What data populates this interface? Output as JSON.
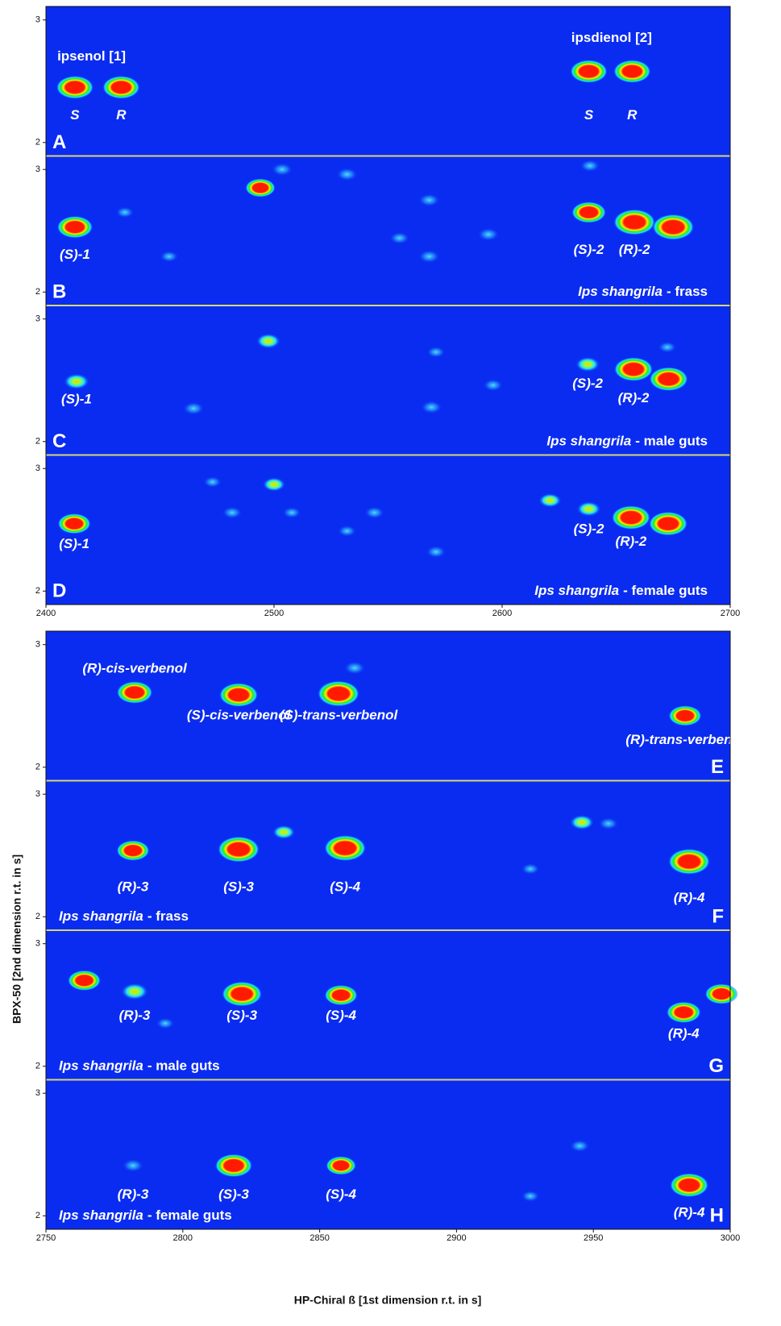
{
  "figure": {
    "x_label": "HP-Chiral ß [1st dimension r.t. in s]",
    "y_label": "BPX-50 [2nd dimension r.t. in s]"
  },
  "chart_data": [
    {
      "type": "heatmap",
      "xlim": [
        2400,
        2700
      ],
      "xticks": [
        2400,
        2500,
        2600,
        2700
      ],
      "ylim": [
        1.89,
        3.11
      ],
      "yticks": [
        2,
        3
      ],
      "letter_corner": "left",
      "panels": [
        {
          "letter": "A",
          "annotations": [
            {
              "text": "ipsenol [1]",
              "x": 2420,
              "y": 2.7
            },
            {
              "text": "ipsdienol [2]",
              "x": 2648,
              "y": 2.85
            }
          ],
          "peaks": [
            {
              "x": 2412.7,
              "y": 2.45,
              "intensity": 0.85,
              "label": "S",
              "label_y": 2.22
            },
            {
              "x": 2433,
              "y": 2.45,
              "intensity": 0.85,
              "label": "R",
              "label_y": 2.22
            },
            {
              "x": 2638,
              "y": 2.58,
              "intensity": 0.85,
              "label": "S",
              "label_y": 2.22
            },
            {
              "x": 2657,
              "y": 2.58,
              "intensity": 0.85,
              "label": "R",
              "label_y": 2.22
            }
          ]
        },
        {
          "letter": "B",
          "sample": {
            "species": "Ips shangrila",
            "rest": "- frass"
          },
          "sample_corner": "right",
          "peaks": [
            {
              "x": 2412.7,
              "y": 2.53,
              "intensity": 0.8,
              "label": "(S)-1",
              "label_y": 2.3
            },
            {
              "x": 2494,
              "y": 2.85,
              "intensity": 0.6
            },
            {
              "x": 2638,
              "y": 2.65,
              "intensity": 0.75,
              "label": "(S)-2",
              "label_y": 2.34
            },
            {
              "x": 2658,
              "y": 2.57,
              "intensity": 1.0,
              "label": "(R)-2",
              "label_y": 2.34
            },
            {
              "x": 2675,
              "y": 2.53,
              "intensity": 1.0
            },
            {
              "x": 2503.5,
              "y": 3.0,
              "intensity": 0.3
            },
            {
              "x": 2532,
              "y": 2.96,
              "intensity": 0.3
            },
            {
              "x": 2568,
              "y": 2.75,
              "intensity": 0.3
            },
            {
              "x": 2568,
              "y": 2.29,
              "intensity": 0.3
            },
            {
              "x": 2555,
              "y": 2.44,
              "intensity": 0.25
            },
            {
              "x": 2594,
              "y": 2.47,
              "intensity": 0.3
            },
            {
              "x": 2638.5,
              "y": 3.03,
              "intensity": 0.25
            },
            {
              "x": 2454,
              "y": 2.29,
              "intensity": 0.2
            },
            {
              "x": 2434.6,
              "y": 2.65,
              "intensity": 0.2
            }
          ]
        },
        {
          "letter": "C",
          "sample": {
            "species": "Ips shangrila",
            "rest": "- male guts"
          },
          "sample_corner": "right",
          "peaks": [
            {
              "x": 2413.4,
              "y": 2.49,
              "intensity": 0.45,
              "label": "(S)-1",
              "label_y": 2.34
            },
            {
              "x": 2497.5,
              "y": 2.82,
              "intensity": 0.4
            },
            {
              "x": 2637.5,
              "y": 2.63,
              "intensity": 0.4,
              "label": "(S)-2",
              "label_y": 2.47
            },
            {
              "x": 2657.6,
              "y": 2.59,
              "intensity": 0.9,
              "label": "(R)-2",
              "label_y": 2.35
            },
            {
              "x": 2673,
              "y": 2.51,
              "intensity": 0.9
            },
            {
              "x": 2464.7,
              "y": 2.27,
              "intensity": 0.3
            },
            {
              "x": 2569,
              "y": 2.28,
              "intensity": 0.3
            },
            {
              "x": 2596,
              "y": 2.46,
              "intensity": 0.25
            },
            {
              "x": 2571,
              "y": 2.73,
              "intensity": 0.2
            },
            {
              "x": 2672.4,
              "y": 2.77,
              "intensity": 0.2
            }
          ]
        },
        {
          "letter": "D",
          "sample": {
            "species": "Ips shangrila",
            "rest": "- female guts"
          },
          "sample_corner": "right",
          "peaks": [
            {
              "x": 2412.4,
              "y": 2.55,
              "intensity": 0.7,
              "label": "(S)-1",
              "label_y": 2.38
            },
            {
              "x": 2500,
              "y": 2.87,
              "intensity": 0.35
            },
            {
              "x": 2621,
              "y": 2.74,
              "intensity": 0.35
            },
            {
              "x": 2638,
              "y": 2.67,
              "intensity": 0.4,
              "label": "(S)-2",
              "label_y": 2.5
            },
            {
              "x": 2656.5,
              "y": 2.6,
              "intensity": 0.9,
              "label": "(R)-2",
              "label_y": 2.4
            },
            {
              "x": 2672.8,
              "y": 2.55,
              "intensity": 0.9
            },
            {
              "x": 2473,
              "y": 2.89,
              "intensity": 0.2
            },
            {
              "x": 2481.6,
              "y": 2.64,
              "intensity": 0.25
            },
            {
              "x": 2507.8,
              "y": 2.64,
              "intensity": 0.2
            },
            {
              "x": 2544,
              "y": 2.64,
              "intensity": 0.25
            },
            {
              "x": 2532,
              "y": 2.49,
              "intensity": 0.2
            },
            {
              "x": 2571,
              "y": 2.32,
              "intensity": 0.25
            }
          ]
        }
      ]
    },
    {
      "type": "heatmap",
      "xlim": [
        2750,
        3000
      ],
      "xticks": [
        2750,
        2800,
        2850,
        2900,
        2950,
        3000
      ],
      "ylim": [
        1.89,
        3.11
      ],
      "yticks": [
        2,
        3
      ],
      "letter_corner": "right",
      "panels": [
        {
          "letter": "E",
          "peaks": [
            {
              "x": 2782.4,
              "y": 2.61,
              "intensity": 0.8,
              "label": "(R)-cis-verbenol",
              "label_y": 2.8
            },
            {
              "x": 2820.4,
              "y": 2.59,
              "intensity": 0.9,
              "label": "(S)-cis-verbenol",
              "label_y": 2.42
            },
            {
              "x": 2856.9,
              "y": 2.6,
              "intensity": 1.0,
              "label": "(S)-trans-verbenol",
              "label_y": 2.42
            },
            {
              "x": 2862.8,
              "y": 2.81,
              "intensity": 0.3
            },
            {
              "x": 2983.5,
              "y": 2.42,
              "intensity": 0.7,
              "label": "(R)-trans-verbenol",
              "label_y": 2.22
            }
          ]
        },
        {
          "letter": "F",
          "sample": {
            "species": "Ips shangrila",
            "rest": "- frass"
          },
          "sample_corner": "left",
          "peaks": [
            {
              "x": 2781.8,
              "y": 2.54,
              "intensity": 0.7,
              "label": "(R)-3",
              "label_y": 2.24
            },
            {
              "x": 2820.4,
              "y": 2.55,
              "intensity": 1.0,
              "label": "(S)-3",
              "label_y": 2.24
            },
            {
              "x": 2836.9,
              "y": 2.69,
              "intensity": 0.35
            },
            {
              "x": 2859.3,
              "y": 2.56,
              "intensity": 1.0,
              "label": "(S)-4",
              "label_y": 2.24
            },
            {
              "x": 2945.8,
              "y": 2.77,
              "intensity": 0.4
            },
            {
              "x": 2955.5,
              "y": 2.76,
              "intensity": 0.25
            },
            {
              "x": 2985,
              "y": 2.45,
              "intensity": 1.0,
              "label": "(R)-4",
              "label_y": 2.15
            },
            {
              "x": 2927,
              "y": 2.39,
              "intensity": 0.2
            }
          ]
        },
        {
          "letter": "G",
          "sample": {
            "species": "Ips shangrila",
            "rest": "- male guts"
          },
          "sample_corner": "left",
          "peaks": [
            {
              "x": 2764,
              "y": 2.7,
              "intensity": 0.7
            },
            {
              "x": 2782.4,
              "y": 2.61,
              "intensity": 0.5,
              "label": "(R)-3",
              "label_y": 2.41
            },
            {
              "x": 2821.6,
              "y": 2.59,
              "intensity": 0.95,
              "label": "(S)-3",
              "label_y": 2.41
            },
            {
              "x": 2857.8,
              "y": 2.58,
              "intensity": 0.7,
              "label": "(S)-4",
              "label_y": 2.41
            },
            {
              "x": 2983,
              "y": 2.44,
              "intensity": 0.75,
              "label": "(R)-4",
              "label_y": 2.26
            },
            {
              "x": 2996.8,
              "y": 2.59,
              "intensity": 0.7
            },
            {
              "x": 2793.6,
              "y": 2.35,
              "intensity": 0.2
            }
          ]
        },
        {
          "letter": "H",
          "sample": {
            "species": "Ips shangrila",
            "rest": "- female guts"
          },
          "sample_corner": "left",
          "peaks": [
            {
              "x": 2781.8,
              "y": 2.41,
              "intensity": 0.3,
              "label": "(R)-3",
              "label_y": 2.17
            },
            {
              "x": 2818.6,
              "y": 2.41,
              "intensity": 0.85,
              "label": "(S)-3",
              "label_y": 2.17
            },
            {
              "x": 2857.8,
              "y": 2.41,
              "intensity": 0.6,
              "label": "(S)-4",
              "label_y": 2.17
            },
            {
              "x": 2985,
              "y": 2.25,
              "intensity": 0.9,
              "label": "(R)-4",
              "label_y": 2.02
            },
            {
              "x": 2945,
              "y": 2.57,
              "intensity": 0.25
            },
            {
              "x": 2927,
              "y": 2.16,
              "intensity": 0.2
            }
          ]
        }
      ]
    }
  ]
}
